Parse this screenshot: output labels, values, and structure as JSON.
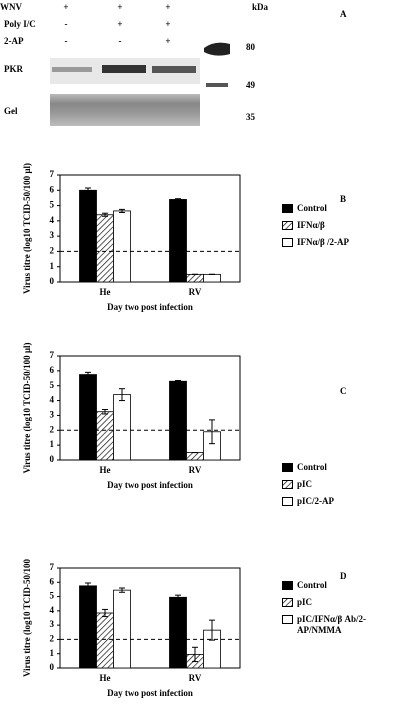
{
  "blot": {
    "panel": "A",
    "rows": [
      {
        "label": "WNV",
        "signs": [
          "+",
          "+",
          "+"
        ]
      },
      {
        "label": "Poly I/C",
        "signs": [
          "-",
          "+",
          "+"
        ]
      },
      {
        "label": "2-AP",
        "signs": [
          "-",
          "-",
          "+"
        ]
      }
    ],
    "unit": "kDa",
    "markers": [
      "80",
      "49",
      "35"
    ],
    "lanes": [
      "PKR",
      "Gel"
    ]
  },
  "chart_data": [
    {
      "type": "bar",
      "panel": "B",
      "y_label": "Virus titre (log10 TCID-50/100 µl)",
      "x_label": "Day two post infection",
      "categories": [
        "He",
        "RV"
      ],
      "ylim": [
        0,
        7
      ],
      "yticks": [
        0,
        1,
        2,
        3,
        4,
        5,
        6,
        7
      ],
      "reference_line": 2,
      "series": [
        {
          "name": "Control",
          "color": "#000000",
          "values": [
            6.0,
            5.4
          ],
          "errors": [
            0.15,
            0.05
          ]
        },
        {
          "name": "IFNα/β",
          "color": "#ffffff",
          "hatch": true,
          "values": [
            4.4,
            0.5
          ],
          "errors": [
            0.1,
            0
          ]
        },
        {
          "name": "IFNα/β /2-AP",
          "color": "#ffffff",
          "values": [
            4.65,
            0.5
          ],
          "errors": [
            0.1,
            0
          ]
        }
      ]
    },
    {
      "type": "bar",
      "panel": "C",
      "y_label": "Virus titre (log10 TCID-50/100 µl)",
      "x_label": "Day two post infection",
      "categories": [
        "He",
        "RV"
      ],
      "ylim": [
        0,
        7
      ],
      "yticks": [
        0,
        1,
        2,
        3,
        4,
        5,
        6,
        7
      ],
      "reference_line": 2,
      "series": [
        {
          "name": "Control",
          "color": "#000000",
          "values": [
            5.75,
            5.3
          ],
          "errors": [
            0.15,
            0.05
          ]
        },
        {
          "name": "pIC",
          "color": "#ffffff",
          "hatch": true,
          "values": [
            3.25,
            0.5
          ],
          "errors": [
            0.15,
            0
          ]
        },
        {
          "name": "pIC/2-AP",
          "color": "#ffffff",
          "values": [
            4.4,
            1.9
          ],
          "errors": [
            0.4,
            0.8
          ]
        }
      ]
    },
    {
      "type": "bar",
      "panel": "D",
      "y_label": "Virus titre (log10 TCID-50/100",
      "x_label": "Day two post infection",
      "categories": [
        "He",
        "RV"
      ],
      "ylim": [
        0,
        7
      ],
      "yticks": [
        0,
        1,
        2,
        3,
        4,
        5,
        6,
        7
      ],
      "reference_line": 2,
      "series": [
        {
          "name": "Control",
          "color": "#000000",
          "values": [
            5.75,
            4.95
          ],
          "errors": [
            0.2,
            0.15
          ]
        },
        {
          "name": "pIC",
          "color": "#ffffff",
          "hatch": true,
          "values": [
            3.85,
            0.95
          ],
          "errors": [
            0.25,
            0.5
          ]
        },
        {
          "name": "pIC/IFNα/β Ab/2-AP/NMMA",
          "color": "#ffffff",
          "values": [
            5.45,
            2.65
          ],
          "errors": [
            0.15,
            0.7
          ]
        }
      ]
    }
  ]
}
